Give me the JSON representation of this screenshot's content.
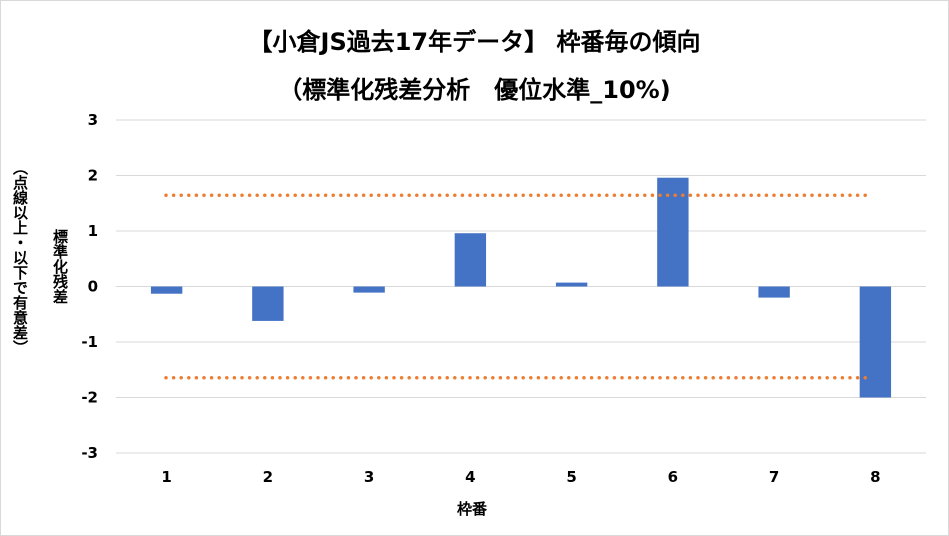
{
  "chart_data": {
    "type": "bar",
    "title_line1": "【小倉JS過去17年データ】 枠番毎の傾向",
    "title_line2": "（標準化残差分析　優位水準_10%)",
    "xlabel": "枠番",
    "ylabel_main": "標準化残差",
    "ylabel_sub": "（点線以上・以下で有意差）",
    "categories": [
      "1",
      "2",
      "3",
      "4",
      "5",
      "6",
      "7",
      "8"
    ],
    "values": [
      -0.13,
      -0.62,
      -0.11,
      0.96,
      0.07,
      1.96,
      -0.2,
      -2.0
    ],
    "ylim": [
      -3,
      3
    ],
    "yticks": [
      "3",
      "2",
      "1",
      "0",
      "-1",
      "-2",
      "-3"
    ],
    "thresholds": [
      1.645,
      -1.645
    ],
    "bar_color": "#4472c4",
    "threshold_color": "#ed7d31",
    "grid": true,
    "legend": "none"
  }
}
